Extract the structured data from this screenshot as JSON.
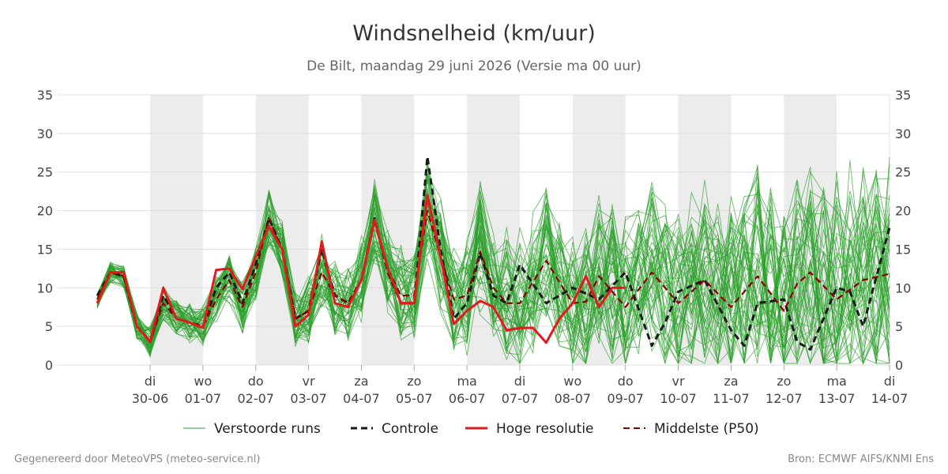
{
  "chart_data": {
    "type": "line",
    "title": "Windsnelheid (km/uur)",
    "subtitle": "De Bilt, maandag 29 juni 2026 (Versie ma 00 uur)",
    "ylim": [
      0,
      35
    ],
    "yticks": [
      0,
      5,
      10,
      15,
      20,
      25,
      30,
      35
    ],
    "grid": true,
    "legend_position": "bottom",
    "x_range_days": [
      -0.75,
      15
    ],
    "x_tick_days": [
      1,
      2,
      3,
      4,
      5,
      6,
      7,
      8,
      9,
      10,
      11,
      12,
      13,
      14,
      15
    ],
    "day_labels": [
      "di",
      "wo",
      "do",
      "vr",
      "za",
      "zo",
      "ma",
      "di",
      "wo",
      "do",
      "vr",
      "za",
      "zo",
      "ma",
      "di"
    ],
    "date_labels": [
      "30-06",
      "01-07",
      "02-07",
      "03-07",
      "04-07",
      "05-07",
      "06-07",
      "07-07",
      "08-07",
      "09-07",
      "10-07",
      "11-07",
      "12-07",
      "13-07",
      "14-07"
    ],
    "shaded_day_ranges": [
      [
        1,
        2
      ],
      [
        3,
        4
      ],
      [
        5,
        6
      ],
      [
        7,
        8
      ],
      [
        9,
        10
      ],
      [
        11,
        12
      ],
      [
        13,
        14
      ]
    ],
    "colors": {
      "ensemble": "#2ca02c",
      "controle": "#1a1a1a",
      "hoge_resolutie": "#e31a1c",
      "p50": "#8b0000",
      "shade": "#ececec",
      "grid": "#dddddd"
    },
    "legend": [
      {
        "key": "ensemble",
        "label": "Verstoorde runs",
        "style": "thin"
      },
      {
        "key": "controle",
        "label": "Controle",
        "style": "dashed"
      },
      {
        "key": "hoge_resolutie",
        "label": "Hoge resolutie",
        "style": "solid"
      },
      {
        "key": "p50",
        "label": "Middelste (P50)",
        "style": "dashed"
      }
    ],
    "ensemble_members": 50,
    "ensemble_seed": 7,
    "series": [
      {
        "key": "hoge_resolutie",
        "x": [
          0,
          0.25,
          0.5,
          0.75,
          1,
          1.25,
          1.5,
          1.75,
          2,
          2.25,
          2.5,
          2.75,
          3,
          3.25,
          3.5,
          3.75,
          4,
          4.25,
          4.5,
          4.75,
          5,
          5.25,
          5.5,
          5.75,
          6,
          6.25,
          6.5,
          6.75,
          7,
          7.25,
          7.5,
          7.75,
          8,
          8.25,
          8.5,
          8.75,
          9,
          9.25,
          9.5,
          9.75,
          10
        ],
        "values": [
          8,
          12,
          12,
          5,
          3,
          10,
          6,
          5.5,
          4.8,
          12.3,
          12.5,
          9.8,
          14,
          18,
          15,
          5,
          6.5,
          16,
          8,
          7.5,
          11,
          18.8,
          12.5,
          8,
          8,
          22,
          14,
          5.3,
          7,
          8.3,
          7.5,
          4.5,
          4.8,
          4.8,
          2.9,
          6,
          8,
          11.5,
          7.5,
          10,
          10
        ]
      },
      {
        "key": "controle",
        "x": [
          0,
          0.25,
          0.5,
          0.75,
          1,
          1.25,
          1.5,
          1.75,
          2,
          2.25,
          2.5,
          2.75,
          3,
          3.25,
          3.5,
          3.75,
          4,
          4.25,
          4.5,
          4.75,
          5,
          5.25,
          5.5,
          5.75,
          6,
          6.25,
          6.5,
          6.75,
          7,
          7.25,
          7.5,
          7.75,
          8,
          8.5,
          9,
          9.5,
          10,
          10.5,
          10.75,
          11,
          11.5,
          12,
          12.25,
          12.5,
          13,
          13.25,
          13.5,
          14,
          14.25,
          14.5,
          15
        ],
        "values": [
          9,
          12,
          11.5,
          5,
          3,
          9,
          6,
          5.5,
          5,
          10,
          12,
          8,
          13,
          19,
          15,
          6,
          7,
          15,
          9,
          8,
          11,
          19,
          12,
          8,
          8,
          27,
          15,
          6,
          8,
          14.5,
          9,
          8,
          13,
          8,
          10,
          8.5,
          12,
          2.5,
          5.5,
          9.5,
          11,
          4.5,
          2.5,
          8,
          8.5,
          3,
          2,
          10,
          9.5,
          5,
          17.8
        ]
      },
      {
        "key": "p50",
        "x": [
          0,
          0.25,
          0.5,
          0.75,
          1,
          1.25,
          1.5,
          1.75,
          2,
          2.25,
          2.5,
          2.75,
          3,
          3.25,
          3.5,
          3.75,
          4,
          4.25,
          4.5,
          4.75,
          5,
          5.25,
          5.5,
          5.75,
          6,
          6.25,
          6.5,
          6.75,
          7,
          7.25,
          7.5,
          7.75,
          8,
          8.5,
          9,
          9.25,
          9.5,
          10,
          10.5,
          11,
          11.5,
          12,
          12.5,
          13,
          13.25,
          13.5,
          14,
          14.5,
          15
        ],
        "values": [
          8.5,
          12,
          11.5,
          5,
          3,
          8,
          6,
          5.5,
          5,
          8.5,
          11,
          7.5,
          12,
          19,
          15,
          6,
          7,
          12,
          9,
          8,
          11,
          18.5,
          12.5,
          9,
          9,
          20,
          14,
          8.5,
          9,
          14.7,
          10,
          8,
          8,
          13.5,
          8,
          8.2,
          11.5,
          7.5,
          12,
          8,
          11,
          7.5,
          11.5,
          7,
          10.5,
          12,
          8.5,
          11,
          11.8
        ]
      }
    ]
  },
  "footer": {
    "left": "Gegenereerd door MeteoVPS (meteo-service.nl)",
    "right": "Bron: ECMWF AIFS/KNMI Ens"
  }
}
